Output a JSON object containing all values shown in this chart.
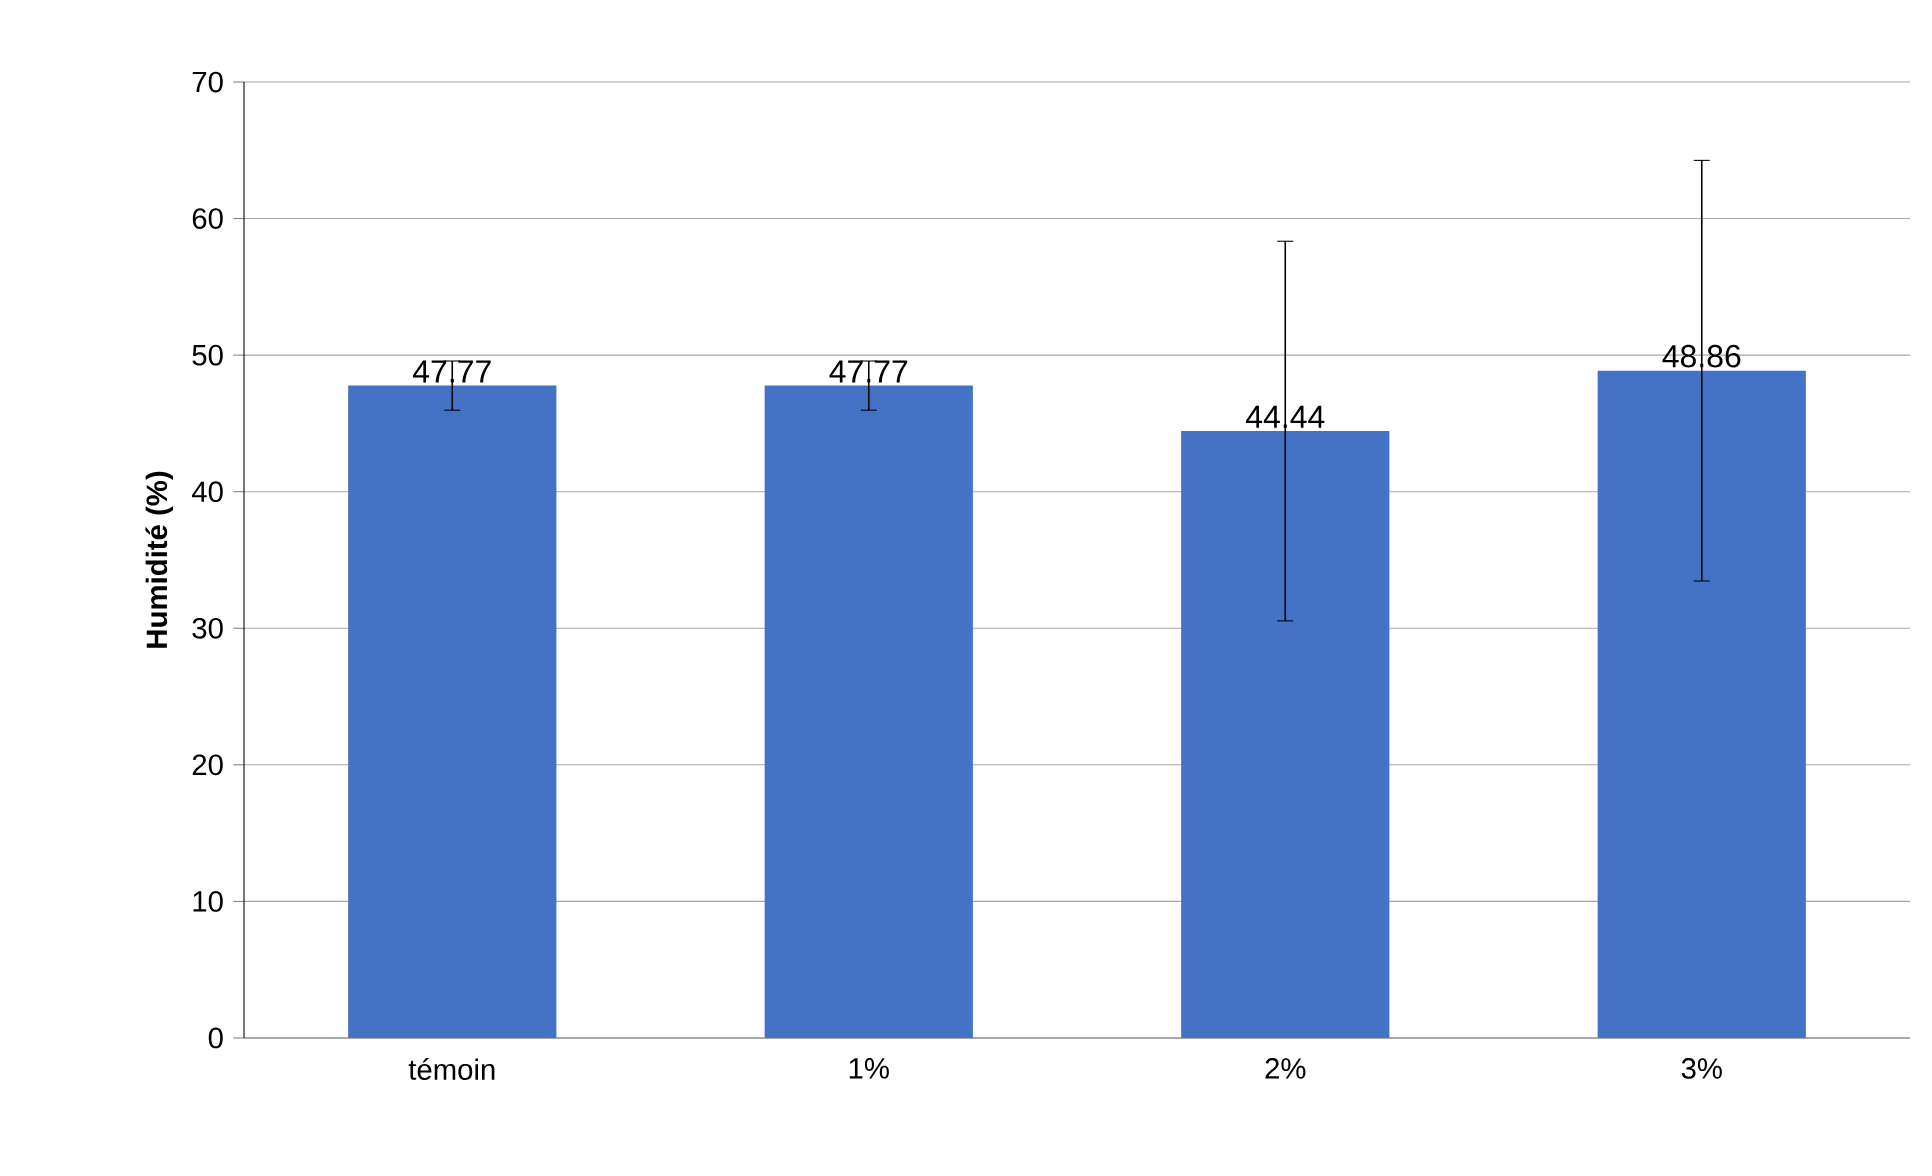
{
  "chart_data": {
    "type": "bar",
    "ylabel": "Humidité (%)",
    "categories": [
      "témoin",
      "1%",
      "2%",
      "3%"
    ],
    "values": [
      47.77,
      47.77,
      44.44,
      48.86
    ],
    "errors": [
      1.8,
      1.8,
      13.9,
      15.4
    ],
    "color": "#4472c4",
    "data_labels": true,
    "ylim": [
      0,
      70
    ],
    "yticks": [
      0,
      10,
      20,
      30,
      40,
      50,
      60,
      70
    ],
    "grid": "y"
  }
}
